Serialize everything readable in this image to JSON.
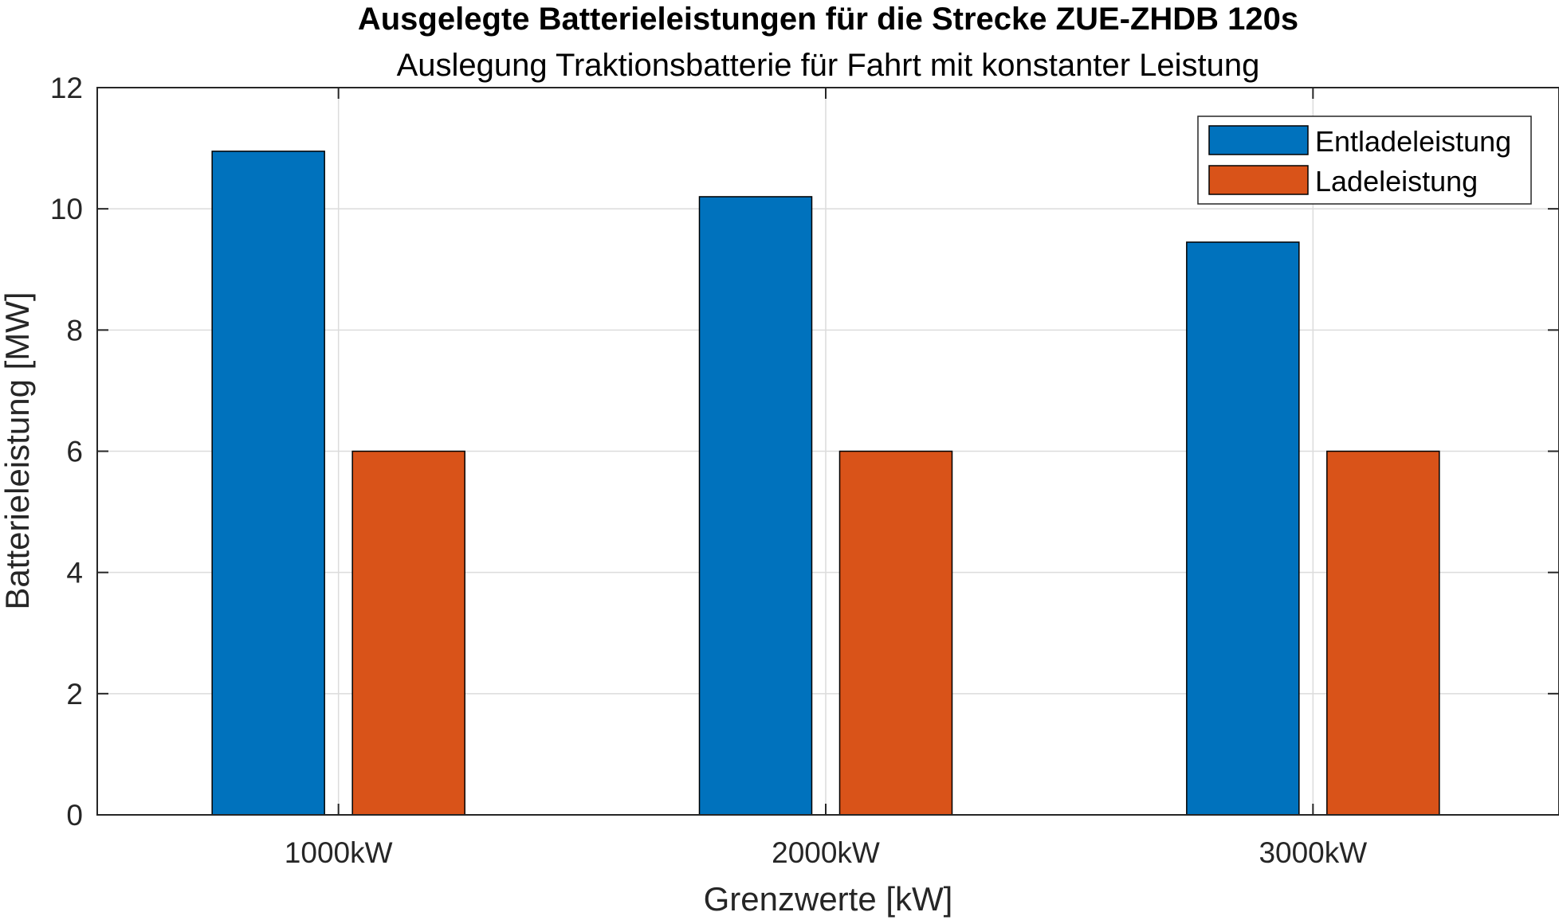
{
  "chart_data": {
    "type": "bar",
    "title": "Ausgelegte Batterieleistungen für die Strecke ZUE-ZHDB 120s",
    "subtitle": "Auslegung Traktionsbatterie für Fahrt mit konstanter Leistung",
    "xlabel": "Grenzwerte [kW]",
    "ylabel": "Batterieleistung [MW]",
    "categories": [
      "1000kW",
      "2000kW",
      "3000kW"
    ],
    "series": [
      {
        "name": "Entladeleistung",
        "values": [
          10.95,
          10.2,
          9.45
        ],
        "color": "#0072BD"
      },
      {
        "name": "Ladeleistung",
        "values": [
          6,
          6,
          6
        ],
        "color": "#D95319"
      }
    ],
    "ylim": [
      0,
      12
    ],
    "yticks": [
      "0",
      "2",
      "4",
      "6",
      "8",
      "10",
      "12"
    ],
    "grid": true,
    "legend_position": "top-right"
  }
}
